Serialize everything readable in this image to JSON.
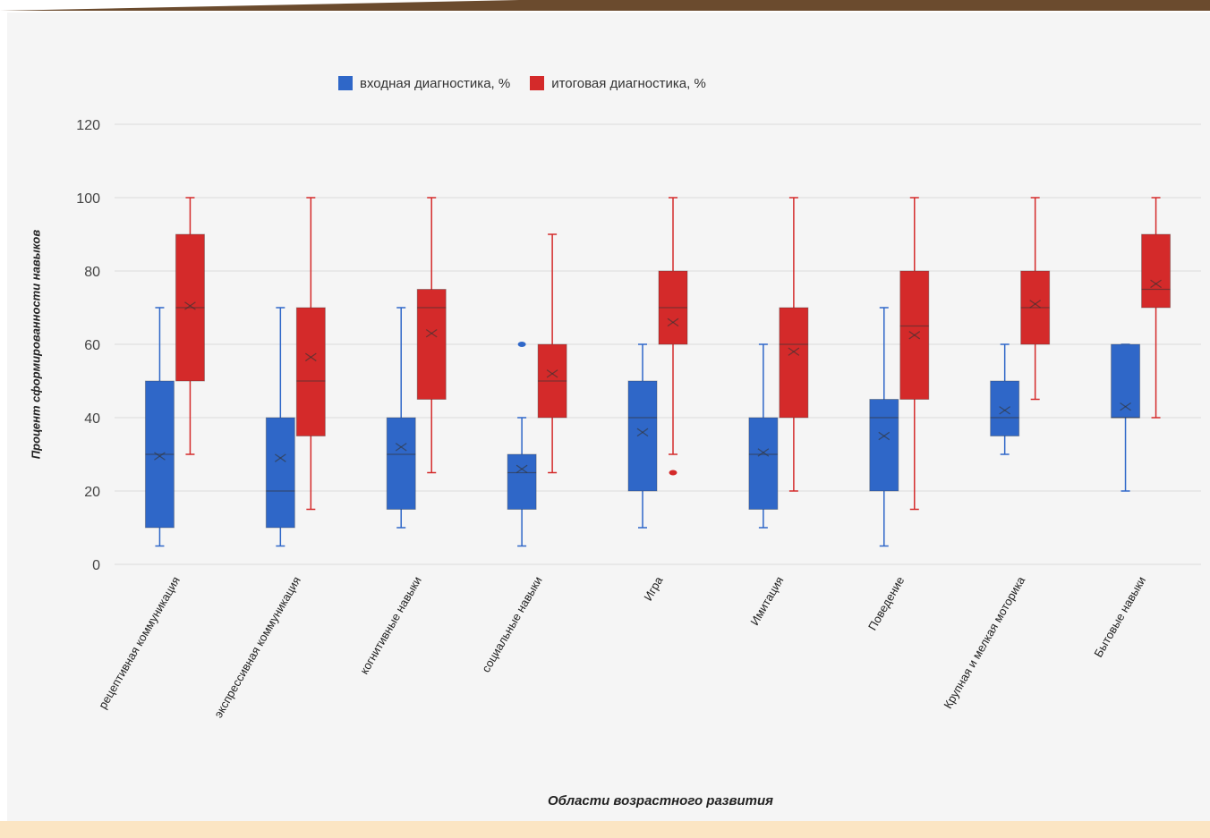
{
  "chart_data": {
    "type": "box",
    "ylabel": "Процент сформированности навыков",
    "xlabel": "Области возрастного развития",
    "ylim": [
      0,
      120
    ],
    "yticks": [
      0,
      20,
      40,
      60,
      80,
      100,
      120
    ],
    "grid": true,
    "legend_position": "top",
    "categories": [
      "рецептивная коммуникация",
      "экспрессивная коммуникация",
      "когнитивные навыки",
      "социальные навыки",
      "Игра",
      "Имитация",
      "Поведение",
      "Крупная и мелкая моторика",
      "Бытовые навыки"
    ],
    "series": [
      {
        "name": "входная диагностика, %",
        "color": "#2f67c8",
        "boxes": [
          {
            "min": 5,
            "q1": 10,
            "median": 30,
            "q3": 50,
            "max": 70,
            "mean": 29.5,
            "outliers": []
          },
          {
            "min": 5,
            "q1": 10,
            "median": 20,
            "q3": 40,
            "max": 70,
            "mean": 29,
            "outliers": []
          },
          {
            "min": 10,
            "q1": 15,
            "median": 30,
            "q3": 40,
            "max": 70,
            "mean": 32,
            "outliers": []
          },
          {
            "min": 5,
            "q1": 15,
            "median": 25,
            "q3": 30,
            "max": 40,
            "mean": 26,
            "outliers": [
              60
            ]
          },
          {
            "min": 10,
            "q1": 20,
            "median": 40,
            "q3": 50,
            "max": 60,
            "mean": 36,
            "outliers": []
          },
          {
            "min": 10,
            "q1": 15,
            "median": 30,
            "q3": 40,
            "max": 60,
            "mean": 30.5,
            "outliers": []
          },
          {
            "min": 5,
            "q1": 20,
            "median": 40,
            "q3": 45,
            "max": 70,
            "mean": 35,
            "outliers": []
          },
          {
            "min": 30,
            "q1": 35,
            "median": 40,
            "q3": 50,
            "max": 60,
            "mean": 42,
            "outliers": []
          },
          {
            "min": 20,
            "q1": 40,
            "median": 40,
            "q3": 60,
            "max": 60,
            "mean": 43,
            "outliers": []
          }
        ]
      },
      {
        "name": "итоговая диагностика, %",
        "color": "#d42a2a",
        "boxes": [
          {
            "min": 30,
            "q1": 50,
            "median": 70,
            "q3": 90,
            "max": 100,
            "mean": 70.5,
            "outliers": []
          },
          {
            "min": 15,
            "q1": 35,
            "median": 50,
            "q3": 70,
            "max": 100,
            "mean": 56.5,
            "outliers": []
          },
          {
            "min": 25,
            "q1": 45,
            "median": 70,
            "q3": 75,
            "max": 100,
            "mean": 63,
            "outliers": []
          },
          {
            "min": 25,
            "q1": 40,
            "median": 50,
            "q3": 60,
            "max": 90,
            "mean": 52,
            "outliers": []
          },
          {
            "min": 30,
            "q1": 60,
            "median": 70,
            "q3": 80,
            "max": 100,
            "mean": 66,
            "outliers": [
              25
            ]
          },
          {
            "min": 20,
            "q1": 40,
            "median": 60,
            "q3": 70,
            "max": 100,
            "mean": 58,
            "outliers": []
          },
          {
            "min": 15,
            "q1": 45,
            "median": 65,
            "q3": 80,
            "max": 100,
            "mean": 62.5,
            "outliers": []
          },
          {
            "min": 45,
            "q1": 60,
            "median": 70,
            "q3": 80,
            "max": 100,
            "mean": 71,
            "outliers": []
          },
          {
            "min": 40,
            "q1": 70,
            "median": 75,
            "q3": 90,
            "max": 100,
            "mean": 76.5,
            "outliers": []
          }
        ]
      }
    ]
  }
}
